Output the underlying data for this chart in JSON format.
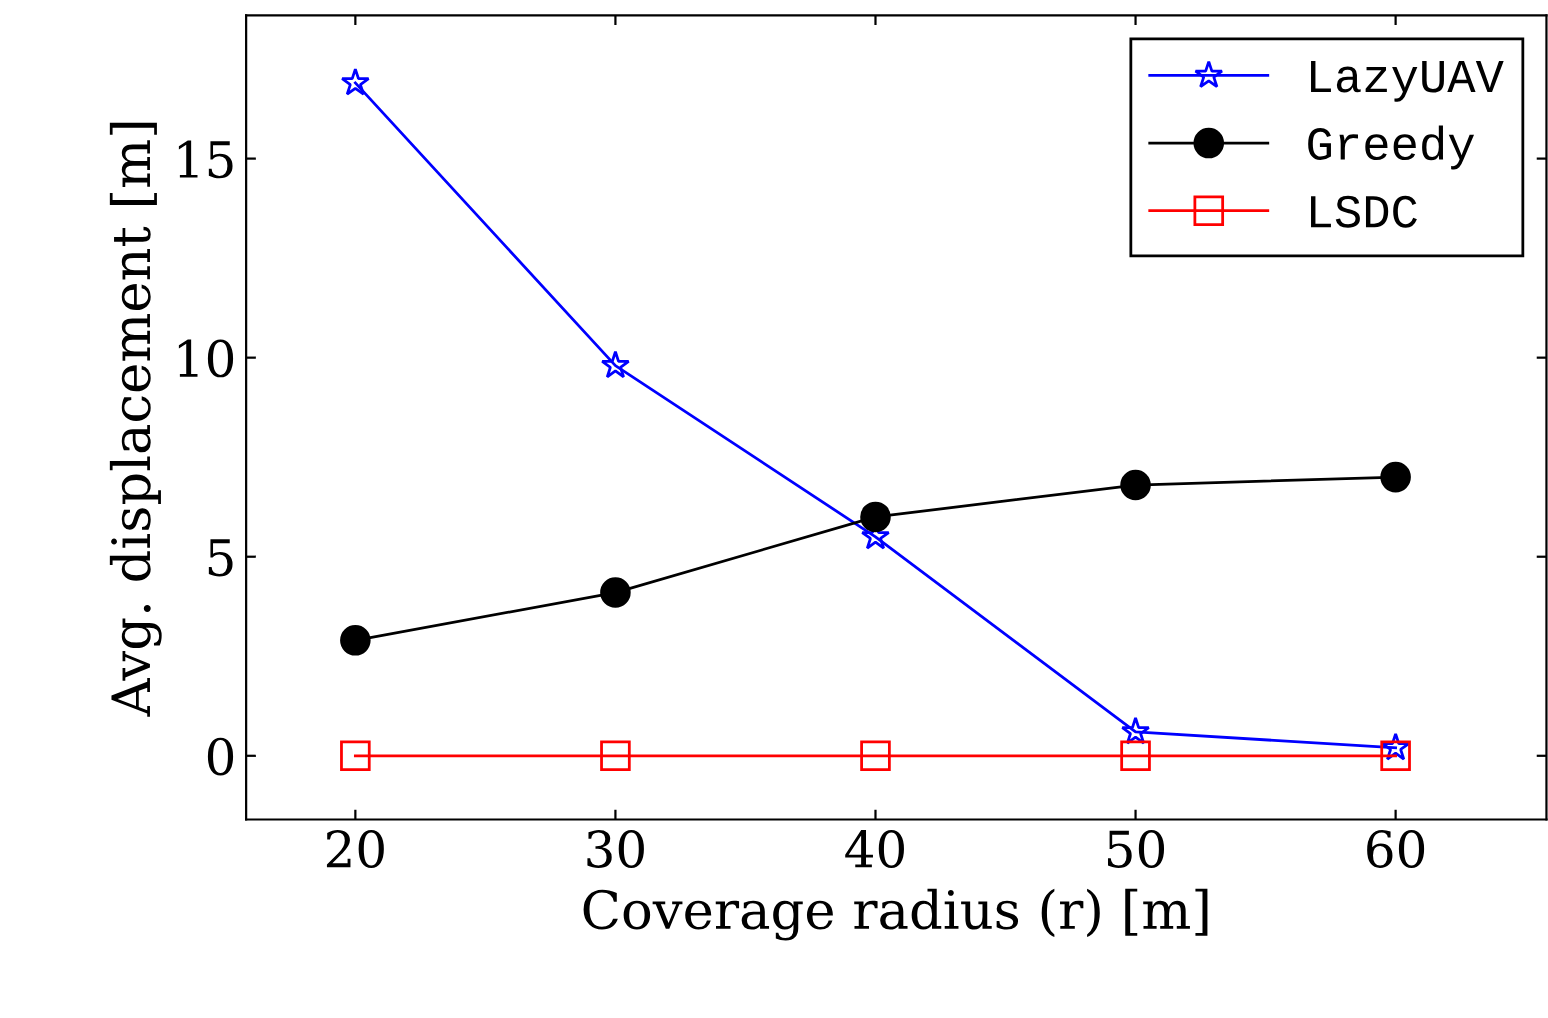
{
  "chart_data": {
    "type": "line",
    "xlabel": "Coverage radius (r) [m]",
    "ylabel": "Avg. displacement [m]",
    "x": [
      20,
      30,
      40,
      50,
      60
    ],
    "series": [
      {
        "name": "LazyUAV",
        "color": "#0000ff",
        "marker": "star",
        "values": [
          16.9,
          9.8,
          5.5,
          0.6,
          0.2
        ]
      },
      {
        "name": "Greedy",
        "color": "#000000",
        "marker": "circle",
        "values": [
          2.9,
          4.1,
          6.0,
          6.8,
          7.0
        ]
      },
      {
        "name": "LSDC",
        "color": "#ff0000",
        "marker": "square",
        "values": [
          0,
          0,
          0,
          0,
          0
        ]
      }
    ],
    "xlim": [
      15.8,
      65.8
    ],
    "ylim": [
      -1.6,
      18.6
    ],
    "xticks": [
      20,
      30,
      40,
      50,
      60
    ],
    "yticks": [
      0,
      5,
      10,
      15
    ],
    "grid": false,
    "legend": "top right",
    "line_style": "solid"
  }
}
